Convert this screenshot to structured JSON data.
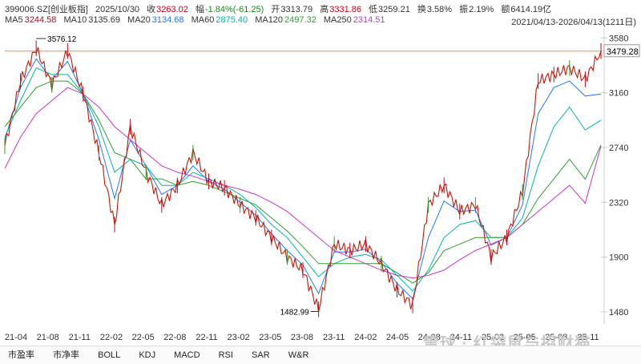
{
  "header": {
    "code": "399006.SZ[创业板指]",
    "date": "2025/10/30",
    "close_label": "收",
    "close_value": "3263.02",
    "change_label": "幅",
    "change_value": "-1.84%(-61.25)",
    "open_label": "开",
    "open_value": "3313.79",
    "high_label": "高",
    "high_value": "3331.86",
    "low_label": "低",
    "low_value": "3259.21",
    "turnover_label": "换",
    "turnover_value": "3.58%",
    "amplitude_label": "振",
    "amplitude_value": "2.19%",
    "amount_label": "额",
    "amount_value": "6414.19亿"
  },
  "ma_legend": [
    {
      "label": "MA5",
      "value": "3244.58",
      "color": "#d0021b"
    },
    {
      "label": "MA10",
      "value": "3135.69",
      "color": "#333333"
    },
    {
      "label": "MA20",
      "value": "3134.68",
      "color": "#1f77ff"
    },
    {
      "label": "MA60",
      "value": "2875.40",
      "color": "#00b3b3"
    },
    {
      "label": "MA120",
      "value": "2497.32",
      "color": "#2ca02c"
    },
    {
      "label": "MA250",
      "value": "2314.51",
      "color": "#cc33cc"
    }
  ],
  "range_text": "2021/04/13-2026/04/13(1211日)",
  "bottom_tabs": [
    "市盈率",
    "市净率",
    "BOLL",
    "KDJ",
    "MACD",
    "RSI",
    "SAR",
    "W&R"
  ],
  "watermark": {
    "brand": "雪球 · 红袋鼠与招财猫"
  },
  "chart_data": {
    "type": "line",
    "y_ticks": [
      "3580",
      "3160",
      "2740",
      "2320",
      "1900",
      "1480"
    ],
    "ylim": [
      1400,
      3650
    ],
    "x_ticks": [
      "21-04",
      "21-08",
      "21-11",
      "22-02",
      "22-05",
      "22-08",
      "22-11",
      "23-02",
      "23-05",
      "23-08",
      "23-11",
      "24-02",
      "24-05",
      "24-08",
      "24-11",
      "25-02",
      "25-05",
      "25-08",
      "25-11"
    ],
    "annotations": {
      "high_label": "3576.12",
      "low_label": "1482.99",
      "ref_line_label": "3479.28"
    },
    "ref_line_value": 3479.28,
    "high_value": 3576.12,
    "low_value": 1482.99,
    "price_series": {
      "x": [
        "21-04",
        "21-06",
        "21-08",
        "21-09",
        "21-11",
        "21-12",
        "22-02",
        "22-04",
        "22-05",
        "22-07",
        "22-08",
        "22-10",
        "22-11",
        "23-01",
        "23-02",
        "23-04",
        "23-05",
        "23-07",
        "23-08",
        "23-10",
        "23-11",
        "24-01",
        "24-02",
        "24-04",
        "24-05",
        "24-07",
        "24-08",
        "24-09",
        "24-10",
        "24-11",
        "25-01",
        "25-02",
        "25-04",
        "25-05",
        "25-07",
        "25-08",
        "25-09",
        "25-10",
        "25-11"
      ],
      "values": [
        2750,
        3250,
        3500,
        3220,
        3480,
        3150,
        2700,
        2150,
        2900,
        2550,
        2300,
        2450,
        2700,
        2480,
        2430,
        2300,
        2200,
        2050,
        1900,
        1800,
        1500,
        2000,
        1950,
        2000,
        1850,
        1650,
        1530,
        2300,
        2450,
        2250,
        2300,
        1900,
        2050,
        2400,
        3250,
        3300,
        3350,
        3263,
        3480
      ]
    },
    "ma_series": [
      {
        "name": "MA20",
        "values": [
          2800,
          3200,
          3420,
          3260,
          3400,
          3150,
          2800,
          2350,
          2800,
          2600,
          2380,
          2450,
          2600,
          2480,
          2420,
          2320,
          2220,
          2080,
          1950,
          1840,
          1620,
          1940,
          1940,
          1960,
          1860,
          1700,
          1580,
          2050,
          2330,
          2250,
          2260,
          1990,
          2050,
          2300,
          3000,
          3200,
          3250,
          3135,
          3150
        ]
      },
      {
        "name": "MA60",
        "values": [
          2820,
          3100,
          3350,
          3300,
          3300,
          3150,
          2900,
          2550,
          2650,
          2600,
          2450,
          2450,
          2550,
          2500,
          2450,
          2380,
          2280,
          2150,
          2050,
          1900,
          1750,
          1850,
          1900,
          1920,
          1880,
          1760,
          1640,
          1800,
          2050,
          2150,
          2180,
          2050,
          2050,
          2200,
          2600,
          2900,
          3050,
          2875,
          2950
        ]
      },
      {
        "name": "MA120",
        "values": [
          2900,
          3050,
          3200,
          3250,
          3250,
          3150,
          2950,
          2700,
          2650,
          2500,
          2500,
          2450,
          2480,
          2450,
          2400,
          2350,
          2300,
          2200,
          2100,
          1980,
          1850,
          1850,
          1850,
          1850,
          1850,
          1780,
          1700,
          1780,
          1950,
          2000,
          2050,
          2050,
          2050,
          2150,
          2350,
          2500,
          2650,
          2497,
          2760
        ]
      },
      {
        "name": "MA250",
        "values": [
          2580,
          2820,
          3000,
          3100,
          3200,
          3150,
          3050,
          2900,
          2800,
          2700,
          2600,
          2550,
          2520,
          2480,
          2450,
          2420,
          2380,
          2320,
          2250,
          2150,
          2050,
          1950,
          1900,
          1850,
          1800,
          1760,
          1740,
          1760,
          1800,
          1880,
          1950,
          2000,
          2050,
          2150,
          2250,
          2350,
          2450,
          2314,
          2750
        ]
      }
    ],
    "grid": false
  }
}
